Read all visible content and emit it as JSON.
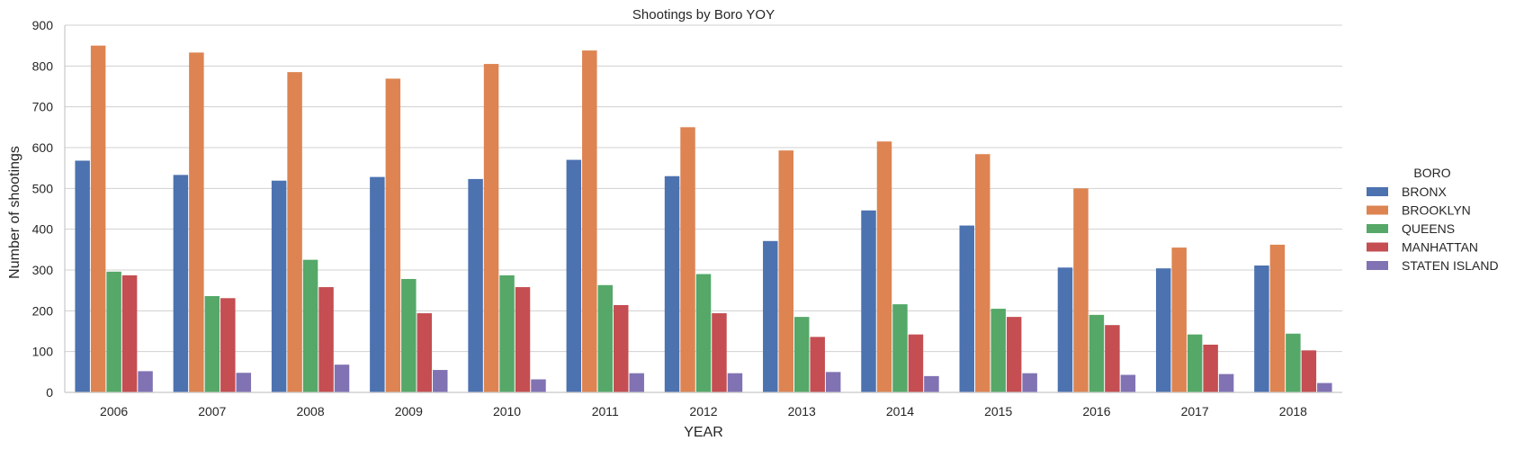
{
  "chart_data": {
    "type": "bar",
    "title": "Shootings by Boro YOY",
    "xlabel": "YEAR",
    "ylabel": "Number of shootings",
    "ylim": [
      0,
      900
    ],
    "yticks": [
      0,
      100,
      200,
      300,
      400,
      500,
      600,
      700,
      800,
      900
    ],
    "grid": true,
    "legend": {
      "title": "BORO",
      "placement": "right"
    },
    "categories": [
      "2006",
      "2007",
      "2008",
      "2009",
      "2010",
      "2011",
      "2012",
      "2013",
      "2014",
      "2015",
      "2016",
      "2017",
      "2018"
    ],
    "series": [
      {
        "name": "BRONX",
        "color": "#4c72b0",
        "values": [
          568,
          533,
          519,
          528,
          523,
          570,
          530,
          371,
          446,
          409,
          306,
          304,
          311
        ]
      },
      {
        "name": "BROOKLYN",
        "color": "#dd8452",
        "values": [
          850,
          833,
          785,
          769,
          805,
          838,
          650,
          593,
          615,
          584,
          500,
          355,
          362
        ]
      },
      {
        "name": "QUEENS",
        "color": "#55a868",
        "values": [
          296,
          236,
          325,
          278,
          287,
          263,
          290,
          185,
          216,
          205,
          190,
          142,
          144
        ]
      },
      {
        "name": "MANHATTAN",
        "color": "#c44e52",
        "values": [
          287,
          231,
          258,
          194,
          258,
          214,
          194,
          136,
          142,
          185,
          165,
          117,
          103
        ]
      },
      {
        "name": "STATEN ISLAND",
        "color": "#8172b3",
        "values": [
          52,
          48,
          68,
          55,
          32,
          47,
          47,
          50,
          40,
          47,
          43,
          45,
          23
        ]
      }
    ]
  }
}
